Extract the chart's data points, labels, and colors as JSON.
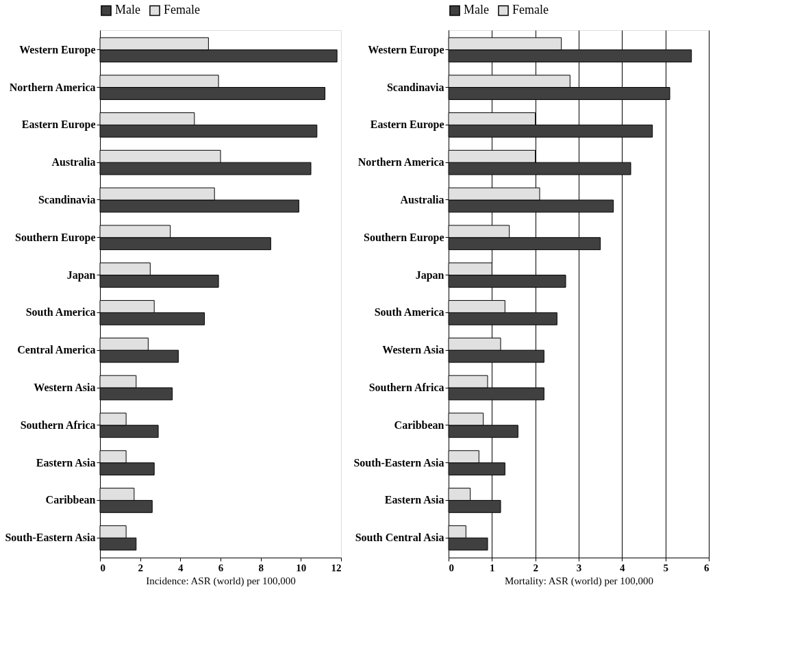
{
  "chart_data": [
    {
      "type": "bar",
      "orientation": "horizontal",
      "xlabel": "Incidence: ASR (world) per 100,000",
      "categories": [
        "Western Europe",
        "Northern America",
        "Eastern Europe",
        "Australia",
        "Scandinavia",
        "Southern Europe",
        "Japan",
        "South America",
        "Central America",
        "Western Asia",
        "Southern Africa",
        "Eastern Asia",
        "Caribbean",
        "South-Eastern Asia"
      ],
      "series": [
        {
          "name": "Male",
          "color": "#404040",
          "values": [
            11.8,
            11.2,
            10.8,
            10.5,
            9.9,
            8.5,
            5.9,
            5.2,
            3.9,
            3.6,
            2.9,
            2.7,
            2.6,
            1.8
          ]
        },
        {
          "name": "Female",
          "color": "#e0e0e0",
          "values": [
            5.4,
            5.9,
            4.7,
            6.0,
            5.7,
            3.5,
            2.5,
            2.7,
            2.4,
            1.8,
            1.3,
            1.3,
            1.7,
            1.3
          ]
        }
      ],
      "xlim": [
        0,
        12
      ],
      "xticks": [
        0,
        2,
        4,
        6,
        8,
        10,
        12
      ],
      "grid": false,
      "legend": "top"
    },
    {
      "type": "bar",
      "orientation": "horizontal",
      "xlabel": "Mortality: ASR (world) per 100,000",
      "categories": [
        "Western Europe",
        "Scandinavia",
        "Eastern Europe",
        "Northern America",
        "Australia",
        "Southern Europe",
        "Japan",
        "South America",
        "Western Asia",
        "Southern Africa",
        "Caribbean",
        "South-Eastern Asia",
        "Eastern Asia",
        "South Central Asia"
      ],
      "series": [
        {
          "name": "Male",
          "color": "#404040",
          "values": [
            5.6,
            5.1,
            4.7,
            4.2,
            3.8,
            3.5,
            2.7,
            2.5,
            2.2,
            2.2,
            1.6,
            1.3,
            1.2,
            0.9
          ]
        },
        {
          "name": "Female",
          "color": "#e0e0e0",
          "values": [
            2.6,
            2.8,
            2.0,
            2.0,
            2.1,
            1.4,
            1.0,
            1.3,
            1.2,
            0.9,
            0.8,
            0.7,
            0.5,
            0.4
          ]
        }
      ],
      "xlim": [
        0,
        6
      ],
      "xticks": [
        0,
        1,
        2,
        3,
        4,
        5,
        6
      ],
      "grid": "x",
      "legend": "top"
    }
  ]
}
